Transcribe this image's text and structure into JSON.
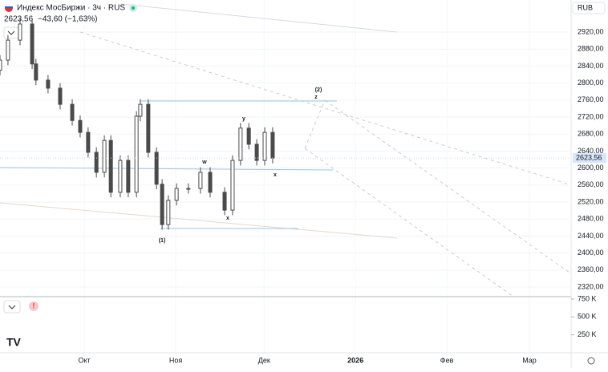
{
  "header": {
    "title": "Индекс МосБиржи · 3ч · RUS",
    "last": "2623,56",
    "change": "−43,60 (−1,63%)",
    "currency": "RUB"
  },
  "chart_data": {
    "type": "candlestick",
    "x": [
      -28.6,
      -25.9,
      -21.8,
      -17.7,
      -16.4,
      -12.3,
      -8.2,
      -4.1,
      -1.4,
      1.3,
      4.1,
      6.8,
      9.0,
      12.2,
      14.9,
      17.7,
      19.0,
      21.7,
      24.5,
      26.4,
      28.5,
      31.3,
      35.3,
      39.4,
      42.7,
      47.6,
      50.3,
      53.0,
      55.8,
      58.5,
      61.2,
      63.9
    ],
    "open": [
      2830,
      2854,
      2901,
      2939,
      2845,
      2807,
      2788,
      2750,
      2712,
      2684,
      2637,
      2590,
      2665,
      2543,
      2618,
      2543,
      2722,
      2750,
      2637,
      2562,
      2467,
      2524,
      2552,
      2552,
      2590,
      2543,
      2501,
      2618,
      2694,
      2656,
      2618,
      2684
    ],
    "high": [
      2866,
      2913,
      2951,
      2951,
      2857,
      2819,
      2800,
      2762,
      2724,
      2696,
      2649,
      2677,
      2677,
      2630,
      2630,
      2734,
      2762,
      2762,
      2649,
      2574,
      2536,
      2564,
      2564,
      2602,
      2602,
      2555,
      2630,
      2706,
      2706,
      2668,
      2696,
      2696
    ],
    "low": [
      2818,
      2842,
      2889,
      2833,
      2795,
      2776,
      2738,
      2700,
      2672,
      2625,
      2578,
      2578,
      2531,
      2531,
      2531,
      2531,
      2710,
      2625,
      2550,
      2455,
      2455,
      2512,
      2540,
      2540,
      2531,
      2489,
      2489,
      2606,
      2644,
      2606,
      2606,
      2611
    ],
    "close": [
      2854,
      2901,
      2939,
      2845,
      2807,
      2788,
      2750,
      2712,
      2684,
      2637,
      2590,
      2665,
      2543,
      2618,
      2543,
      2722,
      2750,
      2637,
      2562,
      2467,
      2524,
      2552,
      2552,
      2590,
      2543,
      2501,
      2618,
      2694,
      2656,
      2618,
      2684,
      2623.56
    ],
    "color": "#4a4a4a",
    "xlim": [
      -28.6,
      164.6
    ],
    "xticks": [
      {
        "value": 0,
        "label": "Окт"
      },
      {
        "value": 31,
        "label": "Ноя"
      },
      {
        "value": 61,
        "label": "Дек"
      },
      {
        "value": 92,
        "label": "2026"
      },
      {
        "value": 123,
        "label": "Фев"
      },
      {
        "value": 151,
        "label": "Мар"
      }
    ],
    "ylim": [
      2297.4,
      2995.5
    ],
    "yticks": [
      {
        "value": 2320,
        "label": "2320,00"
      },
      {
        "value": 2360,
        "label": "2360,00"
      },
      {
        "value": 2400,
        "label": "2400,00"
      },
      {
        "value": 2440,
        "label": "2440,00"
      },
      {
        "value": 2480,
        "label": "2480,00"
      },
      {
        "value": 2520,
        "label": "2520,00"
      },
      {
        "value": 2560,
        "label": "2560,00"
      },
      {
        "value": 2600,
        "label": "2600,00"
      },
      {
        "value": 2640,
        "label": "2640,00"
      },
      {
        "value": 2680,
        "label": "2680,00"
      },
      {
        "value": 2720,
        "label": "2720,00"
      },
      {
        "value": 2760,
        "label": "2760,00"
      },
      {
        "value": 2800,
        "label": "2800,00"
      },
      {
        "value": 2840,
        "label": "2840,00"
      },
      {
        "value": 2880,
        "label": "2880,00"
      },
      {
        "value": 2920,
        "label": "2920,00"
      }
    ],
    "current_price": {
      "value": 2623.56,
      "label": "2623,56"
    },
    "y2lim": [
      0,
      783000
    ],
    "y2ticks": [
      {
        "value": 250000,
        "label": "250 K"
      },
      {
        "value": 500000,
        "label": "500 K"
      },
      {
        "value": 750000,
        "label": "750 K"
      }
    ],
    "annotations": [
      "(1)",
      "w",
      "x",
      "y",
      "x",
      "(2)",
      "z"
    ],
    "grid": true
  }
}
